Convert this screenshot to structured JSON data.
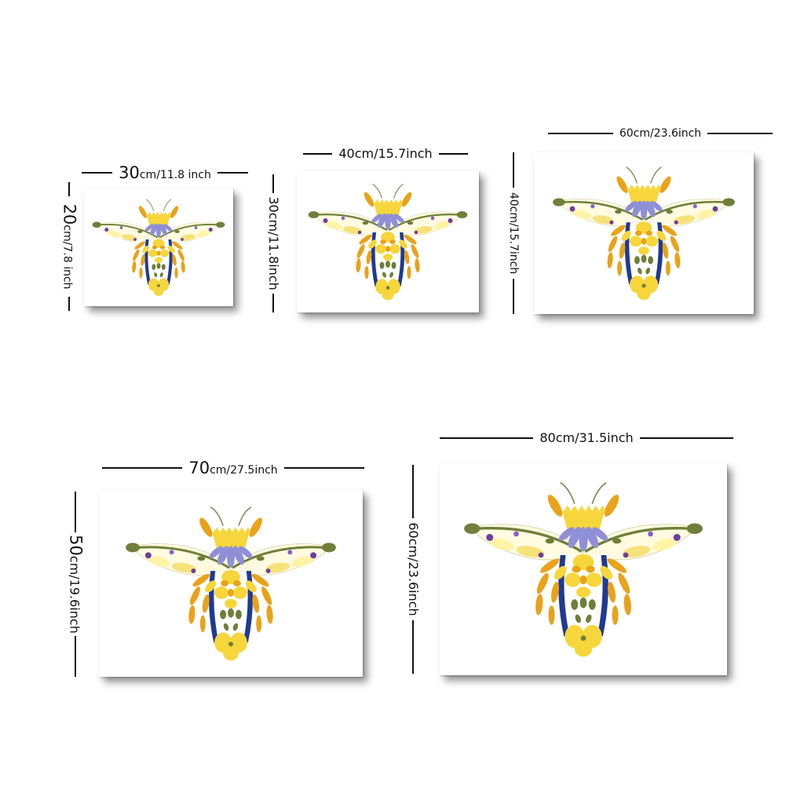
{
  "colors": {
    "frame_shadow": "#000000",
    "yellow": "#f6d63a",
    "orange": "#e9a21a",
    "lavender": "#8f8fd6",
    "navy": "#1f3a93",
    "purple": "#6a3fa0",
    "olive": "#6f7f3a",
    "pale_yellow": "#fff3a6"
  },
  "sizes": [
    {
      "id": "30x20",
      "width_big": "30",
      "width_unit": "cm/",
      "width_inch": "11.8 inch",
      "height_big": "20",
      "height_unit": "cm/",
      "height_inch": "7.8 inch"
    },
    {
      "id": "40x30",
      "width_label": "40cm/15.7inch",
      "height_label": "30cm/11.8inch"
    },
    {
      "id": "60x40",
      "width_label": "60cm/23.6inch",
      "height_label": "40cm/15.7inch"
    },
    {
      "id": "70x50",
      "width_big": "70",
      "width_unit": "cm/",
      "width_inch": "27.5inch",
      "height_big": "50",
      "height_unit": "cm/",
      "height_inch": "19.6inch"
    },
    {
      "id": "80x60",
      "width_label": "80cm/31.5inch",
      "height_label": "60cm/23.6inch"
    }
  ],
  "artwork": {
    "subject": "pressed-flower-bee-icon"
  }
}
